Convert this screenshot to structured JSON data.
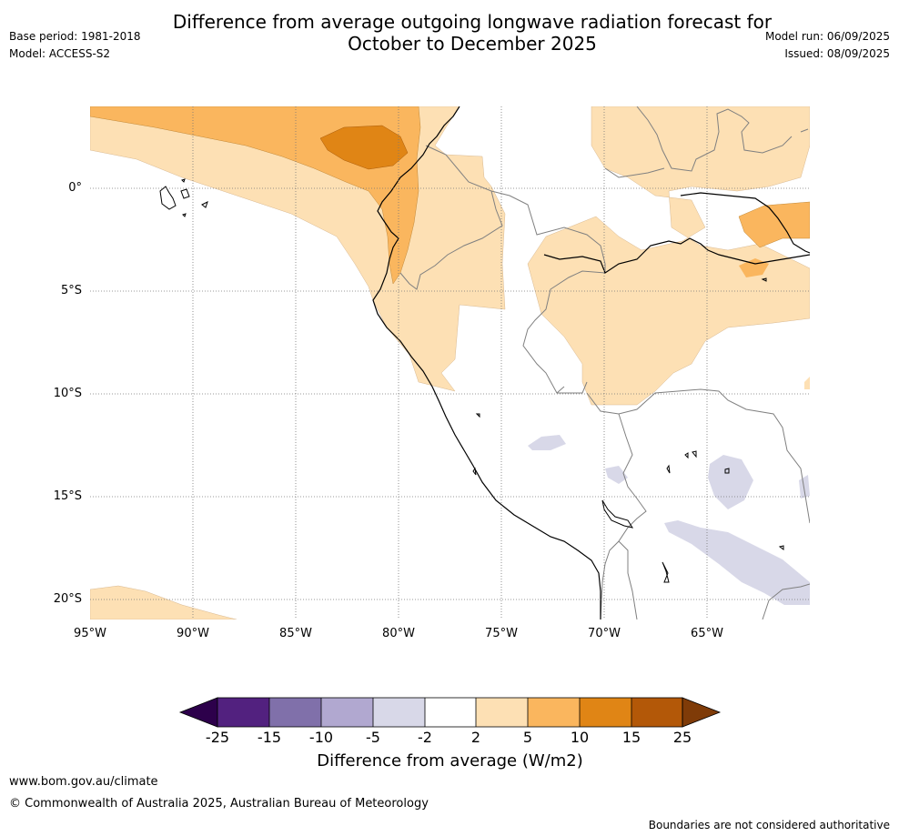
{
  "title_line1": "Difference from average outgoing longwave radiation forecast for",
  "title_line2": "October to December 2025",
  "base_period": "Base period: 1981-2018",
  "model": "Model: ACCESS-S2",
  "model_run": "Model run: 06/09/2025",
  "issued": "Issued: 08/09/2025",
  "lon_labels": [
    "95°W",
    "90°W",
    "85°W",
    "80°W",
    "75°W",
    "70°W",
    "65°W"
  ],
  "lat_labels": [
    "0°",
    "5°S",
    "10°S",
    "15°S",
    "20°S"
  ],
  "colorbar": {
    "ticks": [
      "-25",
      "-15",
      "-10",
      "-5",
      "-2",
      "2",
      "5",
      "10",
      "15",
      "25"
    ],
    "colors": [
      "#52217f",
      "#8070aa",
      "#b1a8d0",
      "#d8d8e8",
      "#ffffff",
      "#fde0b4",
      "#fab65e",
      "#e08515",
      "#b35808"
    ],
    "low_extend_color": "#2d004b",
    "high_extend_color": "#7f3b08",
    "title": "Difference from average (W/m2)"
  },
  "footer_url": "www.bom.gov.au/climate",
  "footer_copyright": "© Commonwealth of Australia 2025, Australian Bureau of Meteorology",
  "disclaimer": "Boundaries are not considered authoritative"
}
